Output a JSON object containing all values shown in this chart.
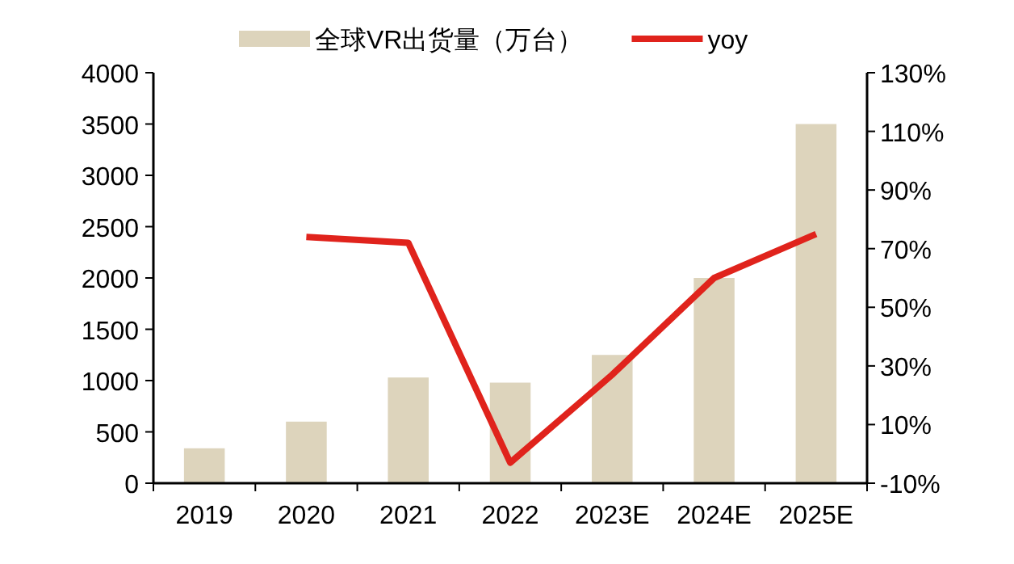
{
  "chart_data": {
    "type": "bar",
    "categories": [
      "2019",
      "2020",
      "2021",
      "2022",
      "2023E",
      "2024E",
      "2025E"
    ],
    "series": [
      {
        "name": "全球VR出货量（万台）",
        "color": "#ddd4bc",
        "values": [
          340,
          600,
          1030,
          980,
          1250,
          2000,
          3500
        ]
      },
      {
        "name": "yoy",
        "type": "line",
        "axis": "y2",
        "color": "#e0231c",
        "values": [
          null,
          74,
          72,
          -3,
          27,
          60,
          75
        ]
      }
    ],
    "ylim": [
      0,
      4000
    ],
    "yticks": [
      0,
      500,
      1000,
      1500,
      2000,
      2500,
      3000,
      3500,
      4000
    ],
    "y2lim": [
      -10,
      130
    ],
    "y2ticks": [
      {
        "value": -10,
        "label": "-10%"
      },
      {
        "value": 10,
        "label": "10%"
      },
      {
        "value": 30,
        "label": "30%"
      },
      {
        "value": 50,
        "label": "50%"
      },
      {
        "value": 70,
        "label": "70%"
      },
      {
        "value": 90,
        "label": "90%"
      },
      {
        "value": 110,
        "label": "110%"
      },
      {
        "value": 130,
        "label": "130%"
      }
    ],
    "legend": "top",
    "grid": false
  }
}
